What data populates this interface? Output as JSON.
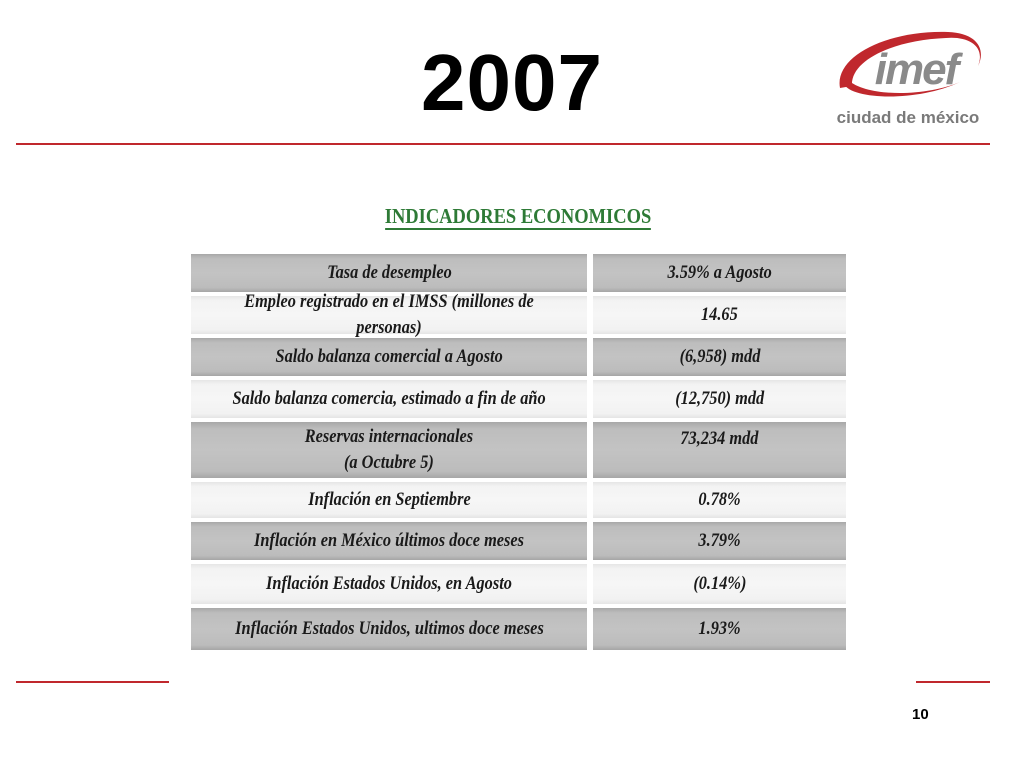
{
  "slide": {
    "title": "2007",
    "page_number": "10"
  },
  "logo": {
    "wordmark": "imef",
    "subtitle": "ciudad de méxico",
    "colors": {
      "red": "#c0282d",
      "gray": "#7a7a7a"
    }
  },
  "table": {
    "heading": "INDICADORES ECONOMICOS",
    "rows": [
      {
        "label": "Tasa de desempleo",
        "value": "3.59% a Agosto"
      },
      {
        "label": "Empleo registrado en el  IMSS (millones de personas)",
        "value": "14.65"
      },
      {
        "label": "Saldo balanza comercial a Agosto",
        "value": "(6,958) mdd"
      },
      {
        "label": "Saldo balanza comercia, estimado a fin de año",
        "value": "(12,750) mdd"
      },
      {
        "label": "Reservas internacionales\n(a Octubre  5)",
        "value": "73,234 mdd"
      },
      {
        "label": "Inflación en Septiembre",
        "value": "0.78%"
      },
      {
        "label": "Inflación en México últimos doce meses",
        "value": "3.79%"
      },
      {
        "label": "Inflación Estados Unidos, en Agosto",
        "value": "(0.14%)"
      },
      {
        "label": "Inflación Estados Unidos, ultimos doce meses",
        "value": "1.93%"
      }
    ]
  },
  "colors": {
    "accent_rule": "#c0282d",
    "heading_green": "#2e7a36",
    "row_dark": "#c3c3c3",
    "row_light": "#f5f5f5"
  }
}
